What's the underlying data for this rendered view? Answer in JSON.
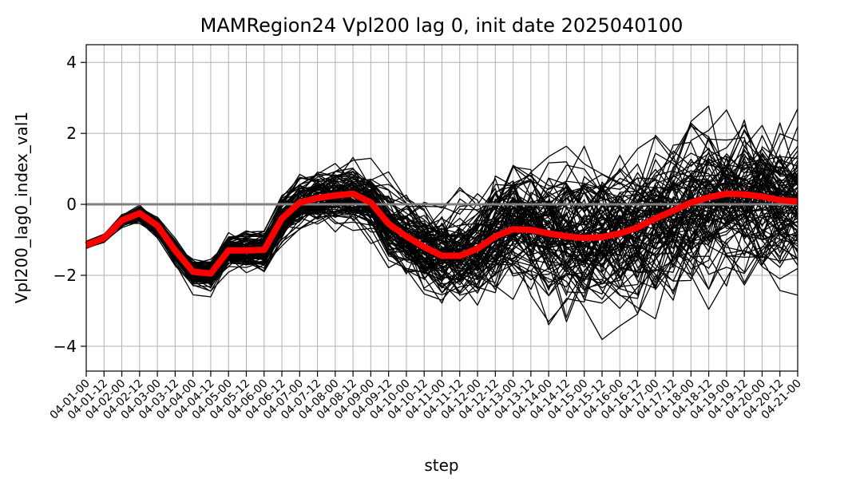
{
  "chart_data": {
    "type": "line",
    "title": "MAMRegion24 Vpl200 lag 0, init date 2025040100",
    "xlabel": "step",
    "ylabel": "Vpl200_lag0_index_val1",
    "ylim": [
      -4.7,
      4.5
    ],
    "yticks": [
      -4,
      -2,
      0,
      2,
      4
    ],
    "grid": true,
    "categories": [
      "04-01-00",
      "04-01-12",
      "04-02-00",
      "04-02-12",
      "04-03-00",
      "04-03-12",
      "04-04-00",
      "04-04-12",
      "04-05-00",
      "04-05-12",
      "04-06-00",
      "04-06-12",
      "04-07-00",
      "04-07-12",
      "04-08-00",
      "04-08-12",
      "04-09-00",
      "04-09-12",
      "04-10-00",
      "04-10-12",
      "04-11-00",
      "04-11-12",
      "04-12-00",
      "04-12-12",
      "04-13-00",
      "04-13-12",
      "04-14-00",
      "04-14-12",
      "04-15-00",
      "04-15-12",
      "04-16-00",
      "04-16-12",
      "04-17-00",
      "04-17-12",
      "04-18-00",
      "04-18-12",
      "04-19-00",
      "04-19-12",
      "04-20-00",
      "04-20-12",
      "04-21-00"
    ],
    "ensemble_mean": [
      -1.15,
      -0.95,
      -0.45,
      -0.25,
      -0.6,
      -1.3,
      -1.9,
      -1.95,
      -1.3,
      -1.3,
      -1.28,
      -0.4,
      0.05,
      0.18,
      0.25,
      0.3,
      0.05,
      -0.55,
      -0.9,
      -1.2,
      -1.45,
      -1.45,
      -1.25,
      -0.9,
      -0.7,
      -0.72,
      -0.82,
      -0.9,
      -0.95,
      -0.92,
      -0.82,
      -0.65,
      -0.4,
      -0.18,
      0.05,
      0.2,
      0.3,
      0.28,
      0.22,
      0.12,
      0.08
    ],
    "reference_line": 0,
    "colors": {
      "members": "#000000",
      "mean": "#ff0000",
      "zero_line": "#808080",
      "grid": "#b0b0b0"
    },
    "ensemble_size": 100
  }
}
